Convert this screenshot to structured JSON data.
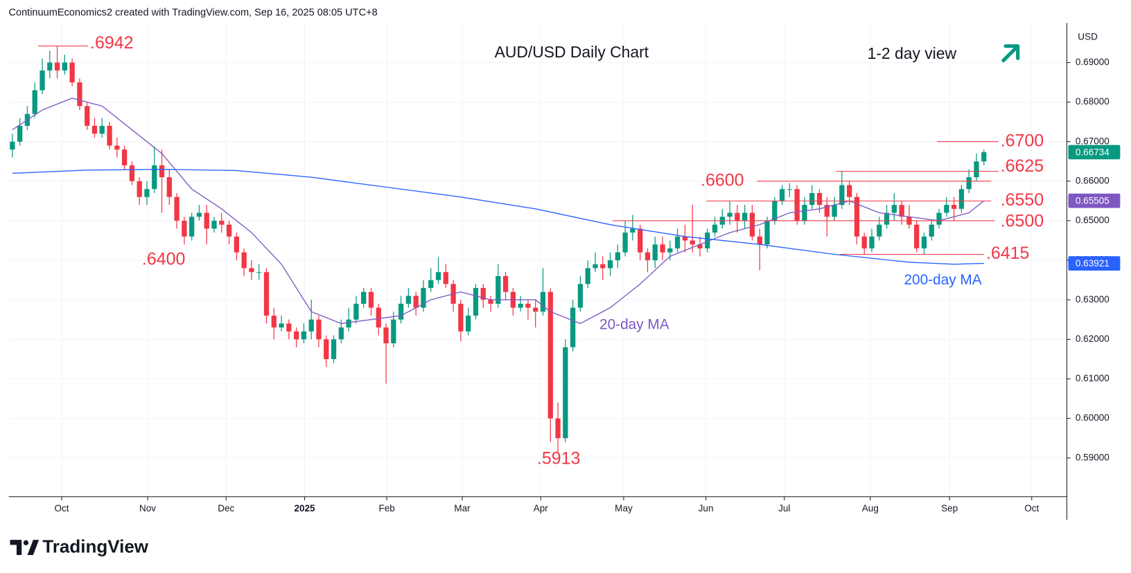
{
  "header": "ContinuumEconomics2 created with TradingView.com, Sep 16, 2025 08:05 UTC+8",
  "footer_logo": "TradingView",
  "chart_data": {
    "type": "candlestick",
    "title": "AUD/USD Daily Chart",
    "subtitle": "1-2 day view",
    "axis_unit": "USD",
    "grid": true,
    "xlim": [
      -0.5,
      141.1
    ],
    "xticks": [
      {
        "value": 6.6,
        "label": "Oct"
      },
      {
        "value": 18.1,
        "label": "Nov"
      },
      {
        "value": 28.6,
        "label": "Dec"
      },
      {
        "value": 39.1,
        "label": "2025"
      },
      {
        "value": 50.1,
        "label": "Feb"
      },
      {
        "value": 60.2,
        "label": "Mar"
      },
      {
        "value": 70.7,
        "label": "Apr"
      },
      {
        "value": 81.8,
        "label": "May"
      },
      {
        "value": 92.8,
        "label": "Jun"
      },
      {
        "value": 103.3,
        "label": "Jul"
      },
      {
        "value": 114.8,
        "label": "Aug"
      },
      {
        "value": 125.4,
        "label": "Sep"
      },
      {
        "value": 136.4,
        "label": "Oct"
      }
    ],
    "ylim": [
      0.5802,
      0.7
    ],
    "yticks": [
      {
        "value": 0.59,
        "label": "0.59000"
      },
      {
        "value": 0.6,
        "label": "0.60000"
      },
      {
        "value": 0.61,
        "label": "0.61000"
      },
      {
        "value": 0.62,
        "label": "0.62000"
      },
      {
        "value": 0.63,
        "label": "0.63000"
      },
      {
        "value": 0.64,
        "label": "0.64000"
      },
      {
        "value": 0.65,
        "label": "0.65000"
      },
      {
        "value": 0.66,
        "label": "0.66000"
      },
      {
        "value": 0.67,
        "label": "0.67000"
      },
      {
        "value": 0.68,
        "label": "0.68000"
      },
      {
        "value": 0.69,
        "label": "0.69000"
      }
    ],
    "ohlc": {
      "up_color": "#089981",
      "down_color": "#f23645",
      "open": [
        0.668,
        0.67,
        0.674,
        0.677,
        0.683,
        0.688,
        0.69,
        0.688,
        0.69,
        0.685,
        0.679,
        0.674,
        0.672,
        0.674,
        0.669,
        0.668,
        0.664,
        0.66,
        0.656,
        0.658,
        0.664,
        0.661,
        0.656,
        0.65,
        0.646,
        0.651,
        0.652,
        0.648,
        0.65,
        0.649,
        0.646,
        0.642,
        0.638,
        0.637,
        0.637,
        0.626,
        0.623,
        0.624,
        0.622,
        0.62,
        0.622,
        0.625,
        0.62,
        0.615,
        0.62,
        0.623,
        0.625,
        0.629,
        0.632,
        0.628,
        0.623,
        0.619,
        0.625,
        0.629,
        0.631,
        0.628,
        0.633,
        0.635,
        0.637,
        0.634,
        0.629,
        0.622,
        0.626,
        0.633,
        0.63,
        0.629,
        0.636,
        0.632,
        0.628,
        0.629,
        0.628,
        0.627,
        0.632,
        0.6,
        0.595,
        0.618,
        0.628,
        0.634,
        0.638,
        0.639,
        0.638,
        0.64,
        0.642,
        0.647,
        0.648,
        0.642,
        0.64,
        0.644,
        0.642,
        0.643,
        0.646,
        0.645,
        0.644,
        0.643,
        0.647,
        0.649,
        0.651,
        0.652,
        0.65,
        0.652,
        0.646,
        0.644,
        0.65,
        0.655,
        0.658,
        0.658,
        0.65,
        0.654,
        0.657,
        0.654,
        0.651,
        0.654,
        0.659,
        0.656,
        0.646,
        0.643,
        0.646,
        0.649,
        0.652,
        0.654,
        0.651,
        0.649,
        0.643,
        0.646,
        0.649,
        0.652,
        0.654,
        0.653,
        0.658,
        0.661,
        0.665
      ],
      "high": [
        0.672,
        0.676,
        0.679,
        0.685,
        0.691,
        0.693,
        0.6942,
        0.692,
        0.691,
        0.686,
        0.68,
        0.676,
        0.676,
        0.675,
        0.671,
        0.669,
        0.665,
        0.661,
        0.66,
        0.6688,
        0.668,
        0.663,
        0.657,
        0.651,
        0.652,
        0.654,
        0.654,
        0.651,
        0.652,
        0.65,
        0.647,
        0.643,
        0.64,
        0.639,
        0.638,
        0.628,
        0.626,
        0.625,
        0.623,
        0.624,
        0.63,
        0.626,
        0.621,
        0.621,
        0.625,
        0.628,
        0.631,
        0.633,
        0.633,
        0.629,
        0.624,
        0.627,
        0.631,
        0.633,
        0.632,
        0.635,
        0.638,
        0.6408,
        0.639,
        0.635,
        0.63,
        0.628,
        0.634,
        0.634,
        0.631,
        0.639,
        0.637,
        0.633,
        0.631,
        0.63,
        0.63,
        0.638,
        0.633,
        0.604,
        0.62,
        0.63,
        0.636,
        0.64,
        0.642,
        0.641,
        0.642,
        0.644,
        0.65,
        0.6515,
        0.649,
        0.643,
        0.646,
        0.646,
        0.645,
        0.648,
        0.649,
        0.654,
        0.646,
        0.648,
        0.651,
        0.653,
        0.655,
        0.654,
        0.654,
        0.654,
        0.648,
        0.651,
        0.656,
        0.659,
        0.6595,
        0.659,
        0.656,
        0.659,
        0.658,
        0.656,
        0.656,
        0.6625,
        0.66,
        0.657,
        0.647,
        0.648,
        0.651,
        0.654,
        0.657,
        0.655,
        0.654,
        0.65,
        0.647,
        0.65,
        0.653,
        0.656,
        0.656,
        0.659,
        0.663,
        0.667,
        0.668
      ],
      "low": [
        0.666,
        0.669,
        0.673,
        0.676,
        0.682,
        0.686,
        0.686,
        0.687,
        0.684,
        0.678,
        0.673,
        0.671,
        0.671,
        0.668,
        0.666,
        0.663,
        0.659,
        0.654,
        0.654,
        0.657,
        0.652,
        0.654,
        0.648,
        0.644,
        0.645,
        0.65,
        0.644,
        0.647,
        0.647,
        0.644,
        0.64,
        0.636,
        0.635,
        0.635,
        0.624,
        0.62,
        0.622,
        0.62,
        0.618,
        0.619,
        0.62,
        0.618,
        0.613,
        0.614,
        0.619,
        0.622,
        0.624,
        0.628,
        0.626,
        0.621,
        0.6088,
        0.618,
        0.624,
        0.628,
        0.626,
        0.627,
        0.632,
        0.634,
        0.633,
        0.627,
        0.6195,
        0.621,
        0.625,
        0.628,
        0.627,
        0.628,
        0.63,
        0.626,
        0.627,
        0.625,
        0.623,
        0.626,
        0.594,
        0.5913,
        0.594,
        0.617,
        0.627,
        0.633,
        0.637,
        0.635,
        0.636,
        0.638,
        0.641,
        0.645,
        0.64,
        0.637,
        0.638,
        0.64,
        0.64,
        0.642,
        0.642,
        0.642,
        0.641,
        0.642,
        0.646,
        0.648,
        0.649,
        0.647,
        0.648,
        0.645,
        0.6375,
        0.643,
        0.649,
        0.654,
        0.656,
        0.649,
        0.649,
        0.653,
        0.652,
        0.646,
        0.65,
        0.653,
        0.654,
        0.644,
        0.6415,
        0.642,
        0.645,
        0.648,
        0.65,
        0.649,
        0.648,
        0.642,
        0.6415,
        0.645,
        0.648,
        0.651,
        0.65,
        0.652,
        0.657,
        0.66,
        0.664
      ],
      "close": [
        0.67,
        0.674,
        0.677,
        0.683,
        0.688,
        0.69,
        0.688,
        0.69,
        0.685,
        0.679,
        0.674,
        0.672,
        0.674,
        0.669,
        0.668,
        0.664,
        0.66,
        0.656,
        0.658,
        0.664,
        0.661,
        0.656,
        0.65,
        0.646,
        0.651,
        0.652,
        0.648,
        0.65,
        0.649,
        0.646,
        0.642,
        0.638,
        0.637,
        0.637,
        0.626,
        0.623,
        0.624,
        0.622,
        0.62,
        0.622,
        0.625,
        0.62,
        0.615,
        0.62,
        0.623,
        0.625,
        0.629,
        0.632,
        0.628,
        0.623,
        0.619,
        0.625,
        0.629,
        0.631,
        0.628,
        0.633,
        0.635,
        0.637,
        0.634,
        0.629,
        0.622,
        0.626,
        0.633,
        0.63,
        0.629,
        0.636,
        0.632,
        0.628,
        0.629,
        0.628,
        0.627,
        0.632,
        0.6,
        0.595,
        0.618,
        0.628,
        0.634,
        0.638,
        0.639,
        0.638,
        0.64,
        0.642,
        0.647,
        0.648,
        0.642,
        0.64,
        0.644,
        0.642,
        0.643,
        0.646,
        0.645,
        0.644,
        0.643,
        0.647,
        0.649,
        0.651,
        0.652,
        0.65,
        0.652,
        0.646,
        0.644,
        0.65,
        0.655,
        0.658,
        0.658,
        0.65,
        0.654,
        0.657,
        0.654,
        0.651,
        0.654,
        0.659,
        0.656,
        0.646,
        0.643,
        0.646,
        0.649,
        0.652,
        0.654,
        0.651,
        0.649,
        0.643,
        0.646,
        0.649,
        0.652,
        0.654,
        0.653,
        0.658,
        0.661,
        0.665,
        0.66734
      ],
      "last_label": "0.66734"
    },
    "series": [
      {
        "name": "20-day MA",
        "color": "#7e57c2",
        "last_label": "0.65505",
        "x": [
          0,
          4,
          8,
          12,
          16,
          20,
          24,
          28,
          32,
          36,
          40,
          44,
          48,
          52,
          56,
          60,
          64,
          68,
          70,
          72,
          76,
          80,
          84,
          88,
          92,
          96,
          100,
          104,
          108,
          112,
          116,
          120,
          124,
          128,
          130
        ],
        "values": [
          0.673,
          0.678,
          0.681,
          0.679,
          0.673,
          0.667,
          0.658,
          0.653,
          0.647,
          0.639,
          0.627,
          0.624,
          0.625,
          0.626,
          0.63,
          0.632,
          0.63,
          0.63,
          0.63,
          0.627,
          0.624,
          0.628,
          0.634,
          0.641,
          0.644,
          0.647,
          0.649,
          0.652,
          0.653,
          0.655,
          0.652,
          0.651,
          0.65,
          0.652,
          0.65505
        ]
      },
      {
        "name": "200-day MA",
        "color": "#2962ff",
        "last_label": "0.63921",
        "x": [
          0,
          10,
          20,
          30,
          40,
          50,
          60,
          70,
          80,
          90,
          100,
          110,
          120,
          126,
          130
        ],
        "values": [
          0.662,
          0.6628,
          0.663,
          0.6627,
          0.661,
          0.6585,
          0.656,
          0.653,
          0.649,
          0.646,
          0.644,
          0.6415,
          0.6395,
          0.639,
          0.63921
        ]
      }
    ],
    "annotation_color": "#f23645",
    "annotations": [
      {
        "label": ".6942",
        "value": 0.6942
      },
      {
        "label": ".6700",
        "value": 0.67
      },
      {
        "label": ".6625",
        "value": 0.6625
      },
      {
        "label": ".6600",
        "value": 0.66
      },
      {
        "label": ".6550",
        "value": 0.655
      },
      {
        "label": ".6500",
        "value": 0.65
      },
      {
        "label": ".6415",
        "value": 0.6415
      },
      {
        "label": ".6400",
        "value": 0.64
      },
      {
        "label": ".5913",
        "value": 0.5913
      }
    ]
  }
}
